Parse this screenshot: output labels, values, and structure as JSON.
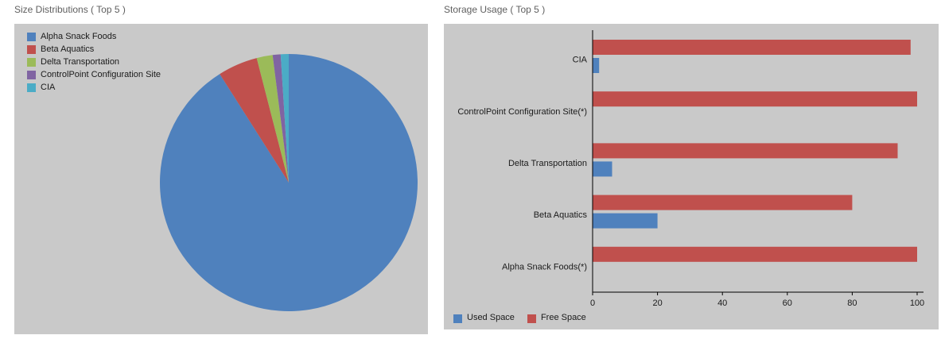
{
  "titles": {
    "pie": "Size Distributions ( Top 5 )",
    "bar": "Storage Usage ( Top 5 )"
  },
  "colors": {
    "panel_bg": "#c9c9c9",
    "blue": "#4F81BD",
    "red": "#C0504D",
    "green": "#9BBB59",
    "purple": "#8064A2",
    "cyan": "#4BACC6",
    "axis": "#000000",
    "label_text": "#1a1a1a"
  },
  "chart_data": [
    {
      "type": "pie",
      "title": "Size Distributions ( Top 5 )",
      "labels": [
        "Alpha Snack Foods",
        "Beta Aquatics",
        "Delta Transportation",
        "ControlPoint Configuration Site",
        "CIA"
      ],
      "values": [
        91,
        5,
        2,
        1,
        1
      ],
      "colors": [
        "#4F81BD",
        "#C0504D",
        "#9BBB59",
        "#8064A2",
        "#4BACC6"
      ],
      "legend_position": "top-left",
      "start_angle_deg": -90,
      "direction": "clockwise"
    },
    {
      "type": "bar",
      "orientation": "horizontal",
      "title": "Storage Usage ( Top 5 )",
      "categories": [
        "CIA",
        "ControlPoint Configuration Site(*)",
        "Delta Transportation",
        "Beta Aquatics",
        "Alpha Snack Foods(*)"
      ],
      "series": [
        {
          "name": "Used Space",
          "color": "#4F81BD",
          "values": [
            2,
            0,
            6,
            20,
            0
          ]
        },
        {
          "name": "Free Space",
          "color": "#C0504D",
          "values": [
            98,
            100,
            94,
            80,
            100
          ]
        }
      ],
      "xlim": [
        0,
        100
      ],
      "xticks": [
        0,
        20,
        40,
        60,
        80,
        100
      ],
      "grid": false,
      "legend_position": "bottom-left"
    }
  ]
}
